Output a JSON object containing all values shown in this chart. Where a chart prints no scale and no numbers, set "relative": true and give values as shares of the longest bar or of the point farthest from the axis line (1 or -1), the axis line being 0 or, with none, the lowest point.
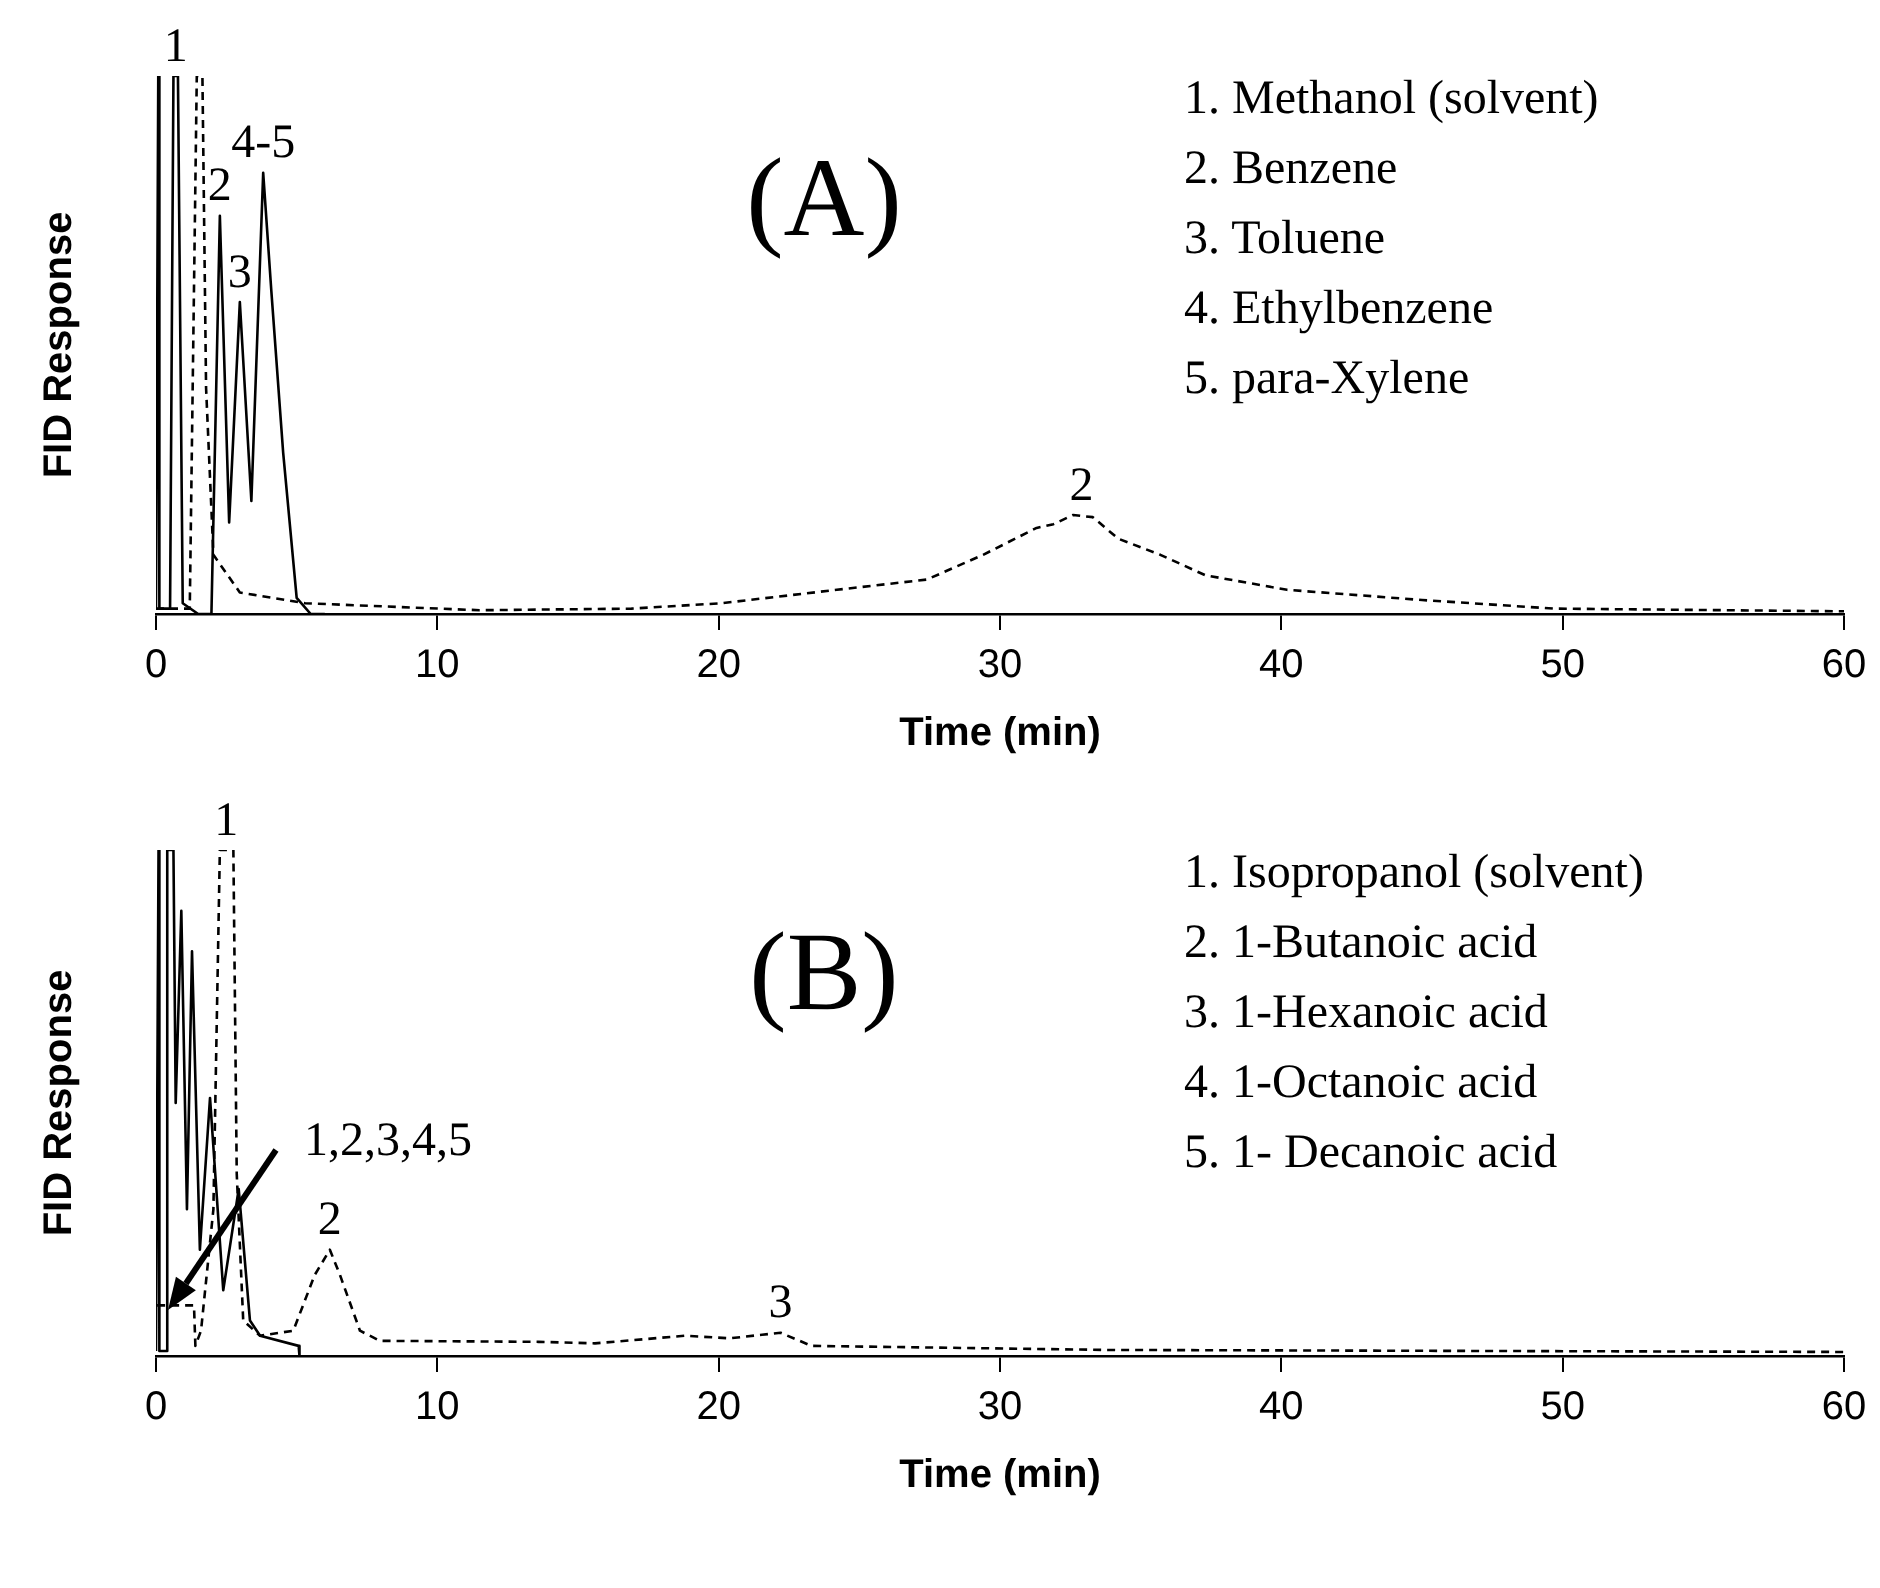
{
  "chart_data": [
    {
      "type": "line",
      "relative": true,
      "xlabel": "Time (min)",
      "ylabel": "FID Response",
      "xlim": [
        0,
        60
      ],
      "xticks": [
        0,
        10,
        20,
        30,
        40,
        50,
        60
      ],
      "tick_labels": "x",
      "grid": false,
      "legend": false,
      "series": [
        {
          "color": "#000000",
          "line_style": "solid",
          "x": [
            0,
            0.08,
            0.12,
            0.5,
            0.62,
            0.78,
            0.95,
            1.5,
            1.97,
            2.27,
            2.6,
            2.98,
            3.39,
            3.81,
            4.1,
            4.52,
            5.0,
            5.5,
            6
          ],
          "values": [
            0.01,
            1,
            0.01,
            0.01,
            1,
            1,
            0.02,
            0,
            0,
            0.74,
            0.17,
            0.58,
            0.21,
            0.82,
            0.6,
            0.3,
            0.03,
            0,
            0
          ]
        },
        {
          "color": "#000000",
          "line_style": "dashed",
          "x": [
            0,
            1.2,
            1.45,
            1.65,
            1.78,
            2.04,
            2.98,
            5.3,
            11.5,
            16.9,
            20.1,
            24.2,
            27.4,
            29.4,
            31.3,
            31.9,
            32.6,
            33.3,
            34.2,
            35.7,
            37.3,
            40.2,
            45.0,
            49.7,
            60
          ],
          "values": [
            0.01,
            0.01,
            1,
            1,
            0.42,
            0.11,
            0.04,
            0.02,
            0.007,
            0.01,
            0.02,
            0.045,
            0.064,
            0.11,
            0.16,
            0.167,
            0.184,
            0.18,
            0.14,
            0.11,
            0.072,
            0.045,
            0.026,
            0.01,
            0.005
          ]
        }
      ],
      "annotations": [
        "(A)",
        "1. Methanol (solvent)",
        "2. Benzene",
        "3. Toluene",
        "4. Ethylbenzene",
        "5. para-Xylene",
        {
          "text": "1",
          "x": 0.7,
          "y": 1
        },
        {
          "text": "2",
          "x": 2.27,
          "y": 0.74
        },
        {
          "text": "3",
          "x": 2.98,
          "y": 0.58
        },
        {
          "text": "4-5",
          "x": 3.81,
          "y": 0.82
        },
        {
          "text": "2",
          "x": 32.9,
          "y": 0.184
        }
      ]
    },
    {
      "type": "line",
      "relative": true,
      "xlabel": "Time (min)",
      "ylabel": "FID Response",
      "xlim": [
        0,
        60
      ],
      "xticks": [
        0,
        10,
        20,
        30,
        40,
        50,
        60
      ],
      "tick_labels": "x",
      "grid": false,
      "legend": false,
      "series": [
        {
          "color": "#000000",
          "line_style": "solid",
          "x": [
            0,
            0.09,
            0.12,
            0.36,
            0.4,
            0.5,
            0.62,
            0.7,
            0.9,
            1.1,
            1.28,
            1.56,
            1.92,
            2.39,
            2.94,
            3.34,
            3.7,
            5.07,
            5.1
          ],
          "values": [
            0.01,
            1,
            0.01,
            0.01,
            1,
            1,
            1,
            0.5,
            0.88,
            0.29,
            0.8,
            0.21,
            0.51,
            0.13,
            0.33,
            0.07,
            0.04,
            0.02,
            0
          ]
        },
        {
          "color": "#000000",
          "line_style": "dashed",
          "x": [
            0.04,
            1.35,
            1.4,
            1.6,
            2.04,
            2.27,
            2.75,
            2.87,
            3.1,
            3.7,
            4.88,
            5.64,
            6.18,
            6.54,
            7.25,
            7.96,
            13.6,
            15.6,
            18.8,
            20.4,
            22.2,
            23.3,
            33.8,
            60
          ],
          "values": [
            0.1,
            0.1,
            0.02,
            0.05,
            0.29,
            1,
            1,
            0.36,
            0.07,
            0.04,
            0.05,
            0.16,
            0.21,
            0.16,
            0.05,
            0.03,
            0.028,
            0.025,
            0.04,
            0.035,
            0.046,
            0.02,
            0.012,
            0.008
          ]
        }
      ],
      "annotations": [
        "(B)",
        "1. Isopropanol (solvent)",
        "2. 1-Butanoic acid",
        "3. 1-Hexanoic acid",
        "4. 1-Octanoic acid",
        "5. 1- Decanoic acid",
        "1,2,3,4,5",
        {
          "text": "1",
          "x": 2.5,
          "y": 1
        },
        {
          "text": "2",
          "x": 6.18,
          "y": 0.21
        },
        {
          "text": "3",
          "x": 22.2,
          "y": 0.046
        }
      ]
    }
  ]
}
